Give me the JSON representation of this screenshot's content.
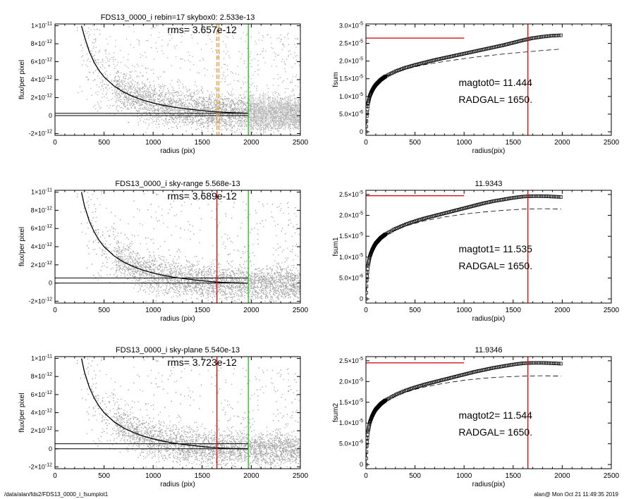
{
  "footer": {
    "path": "/data/alan/fds2/FDS13_0000_i_fsumplot1",
    "stamp": "alan@  Mon Oct 21 11:49:35 2019"
  },
  "colors": {
    "scatter": "#a0a0a0",
    "profile": "#000000",
    "red_line": "#dd1010",
    "green_line": "#22cc22",
    "orange_line": "#e8a040"
  },
  "chart_data": [
    {
      "type": "scatter",
      "title": "FDS13_0000_i rebin=17    skybox0:  2.533e-13",
      "annotation": "rms= 3.657e-12",
      "xlabel": "radius (pix)",
      "ylabel": "flux/per pixel",
      "xlim": [
        0,
        2500
      ],
      "ylim": [
        -2.2e-12,
        1.02e-11
      ],
      "xticks": [
        "0",
        "500",
        "1000",
        "1500",
        "2000",
        "2500"
      ],
      "yticks": [
        {
          "v": 1e-11,
          "m": "1×10",
          "e": "-11"
        },
        {
          "v": 8e-12,
          "m": "8×10",
          "e": "-12"
        },
        {
          "v": 6e-12,
          "m": "6×10",
          "e": "-12"
        },
        {
          "v": 4e-12,
          "m": "4×10",
          "e": "-12"
        },
        {
          "v": 2e-12,
          "m": "2×10",
          "e": "-12"
        },
        {
          "v": 0,
          "m": "0",
          "e": ""
        },
        {
          "v": -2e-12,
          "m": "-2×10",
          "e": "-12"
        }
      ],
      "profile": {
        "x": [
          270,
          300,
          350,
          400,
          450,
          500,
          600,
          700,
          800,
          900,
          1000,
          1100,
          1200,
          1300,
          1400,
          1500,
          1600,
          1700,
          1800,
          1900,
          1970
        ],
        "y": [
          1e-11,
          8.8e-12,
          7.1e-12,
          5.9e-12,
          5e-12,
          4.3e-12,
          3.3e-12,
          2.6e-12,
          2.1e-12,
          1.7e-12,
          1.4e-12,
          1.15e-12,
          9.5e-13,
          8e-13,
          6.8e-13,
          5.5e-13,
          4.5e-13,
          3.8e-13,
          3.2e-13,
          2.8e-13,
          2.6e-13
        ]
      },
      "hlines": [
        0,
        2.533e-13
      ],
      "vlines": [
        {
          "x": 1650,
          "color": "orange",
          "dashed": true
        },
        {
          "x": 1670,
          "color": "orange",
          "dashed": true
        },
        {
          "x": 1970,
          "color": "green",
          "dashed": false
        }
      ],
      "error_bars_from_x": 1970
    },
    {
      "type": "line",
      "title": "",
      "xlabel": "radius(pix)",
      "ylabel": "fsum",
      "xlim": [
        0,
        2500
      ],
      "ylim": [
        -1e-06,
        3.05e-05
      ],
      "xticks": [
        "0",
        "500",
        "1000",
        "1500",
        "2000",
        "2500"
      ],
      "yticks": [
        {
          "v": 3e-05,
          "m": "3.0×10",
          "e": "-5"
        },
        {
          "v": 2.5e-05,
          "m": "2.5×10",
          "e": "-5"
        },
        {
          "v": 2e-05,
          "m": "2.0×10",
          "e": "-5"
        },
        {
          "v": 1.5e-05,
          "m": "1.5×10",
          "e": "-5"
        },
        {
          "v": 1e-05,
          "m": "1.0×10",
          "e": "-5"
        },
        {
          "v": 5e-06,
          "m": "5.0×10",
          "e": "-6"
        },
        {
          "v": 0,
          "m": "0",
          "e": ""
        }
      ],
      "hline": {
        "y": 2.65e-05,
        "x0": 0,
        "x1": 1000
      },
      "vline": 1650,
      "curve": {
        "x": [
          0,
          10,
          20,
          40,
          60,
          80,
          100,
          150,
          200,
          300,
          400,
          500,
          600,
          700,
          800,
          900,
          1000,
          1100,
          1200,
          1300,
          1400,
          1500,
          1600,
          1700,
          1800,
          1900,
          1990
        ],
        "y": [
          0,
          5e-06,
          7.8e-06,
          1.02e-05,
          1.15e-05,
          1.25e-05,
          1.33e-05,
          1.47e-05,
          1.57e-05,
          1.71e-05,
          1.81e-05,
          1.89e-05,
          1.96e-05,
          2.03e-05,
          2.09e-05,
          2.15e-05,
          2.21e-05,
          2.27e-05,
          2.33e-05,
          2.39e-05,
          2.45e-05,
          2.52e-05,
          2.59e-05,
          2.65e-05,
          2.69e-05,
          2.72e-05,
          2.73e-05
        ]
      },
      "dashed_curve": {
        "x": [
          0,
          20,
          60,
          100,
          200,
          300,
          400,
          500,
          600,
          800,
          1000,
          1200,
          1400,
          1600,
          1800,
          1990
        ],
        "y": [
          0,
          7.8e-06,
          1.15e-05,
          1.33e-05,
          1.56e-05,
          1.68e-05,
          1.77e-05,
          1.84e-05,
          1.9e-05,
          1.99e-05,
          2.07e-05,
          2.14e-05,
          2.2e-05,
          2.25e-05,
          2.3e-05,
          2.34e-05
        ]
      },
      "labels": [
        "magtot0=  11.444",
        "RADGAL=   1650."
      ]
    },
    {
      "type": "scatter",
      "title": "FDS13_0000_i sky-range  5.568e-13",
      "annotation": "rms= 3.689e-12",
      "xlabel": "radius (pix)",
      "ylabel": "flux/per pixel",
      "xlim": [
        0,
        2500
      ],
      "ylim": [
        -2.2e-12,
        1.02e-11
      ],
      "xticks": [
        "0",
        "500",
        "1000",
        "1500",
        "2000",
        "2500"
      ],
      "yticks": [
        {
          "v": 1e-11,
          "m": "1×10",
          "e": "-11"
        },
        {
          "v": 8e-12,
          "m": "8×10",
          "e": "-12"
        },
        {
          "v": 6e-12,
          "m": "6×10",
          "e": "-12"
        },
        {
          "v": 4e-12,
          "m": "4×10",
          "e": "-12"
        },
        {
          "v": 2e-12,
          "m": "2×10",
          "e": "-12"
        },
        {
          "v": 0,
          "m": "0",
          "e": ""
        },
        {
          "v": -2e-12,
          "m": "-2×10",
          "e": "-12"
        }
      ],
      "profile": {
        "x": [
          270,
          300,
          350,
          400,
          450,
          500,
          600,
          700,
          800,
          900,
          1000,
          1100,
          1200,
          1300,
          1400,
          1500,
          1600,
          1700,
          1800,
          1900,
          1970
        ],
        "y": [
          1e-11,
          8.5e-12,
          6.8e-12,
          5.6e-12,
          4.7e-12,
          4e-12,
          3e-12,
          2.3e-12,
          1.8e-12,
          1.4e-12,
          1.1e-12,
          8.5e-13,
          6.5e-13,
          5e-13,
          3.8e-13,
          2.5e-13,
          1.5e-13,
          8e-14,
          3e-14,
          0.0,
          0.0
        ]
      },
      "hlines": [
        0,
        5.568e-13
      ],
      "vlines": [
        {
          "x": 1650,
          "color": "red",
          "dashed": false
        },
        {
          "x": 1970,
          "color": "green",
          "dashed": false
        }
      ]
    },
    {
      "type": "line",
      "title": "11.9343",
      "xlabel": "radius(pix)",
      "ylabel": "fsum1",
      "xlim": [
        0,
        2500
      ],
      "ylim": [
        -1e-06,
        2.6e-05
      ],
      "xticks": [
        "0",
        "500",
        "1000",
        "1500",
        "2000",
        "2500"
      ],
      "yticks": [
        {
          "v": 2.5e-05,
          "m": "2.5×10",
          "e": "-5"
        },
        {
          "v": 2e-05,
          "m": "2.0×10",
          "e": "-5"
        },
        {
          "v": 1.5e-05,
          "m": "1.5×10",
          "e": "-5"
        },
        {
          "v": 1e-05,
          "m": "1.0×10",
          "e": "-5"
        },
        {
          "v": 5e-06,
          "m": "5.0×10",
          "e": "-6"
        },
        {
          "v": 0,
          "m": "0",
          "e": ""
        }
      ],
      "hline": {
        "y": 2.47e-05,
        "x0": 0,
        "x1": 1000
      },
      "vline": 1650,
      "curve": {
        "x": [
          0,
          10,
          20,
          40,
          60,
          80,
          100,
          150,
          200,
          300,
          400,
          500,
          600,
          700,
          800,
          900,
          1000,
          1100,
          1200,
          1300,
          1400,
          1500,
          1600,
          1700,
          1800,
          1900,
          1990
        ],
        "y": [
          0,
          5e-06,
          7.8e-06,
          1.02e-05,
          1.15e-05,
          1.25e-05,
          1.33e-05,
          1.46e-05,
          1.55e-05,
          1.68e-05,
          1.78e-05,
          1.86e-05,
          1.93e-05,
          1.99e-05,
          2.05e-05,
          2.11e-05,
          2.17e-05,
          2.23e-05,
          2.29e-05,
          2.34e-05,
          2.38e-05,
          2.42e-05,
          2.45e-05,
          2.46e-05,
          2.46e-05,
          2.45e-05,
          2.44e-05
        ]
      },
      "dashed_curve": {
        "x": [
          0,
          20,
          60,
          100,
          200,
          300,
          400,
          500,
          600,
          800,
          1000,
          1200,
          1400,
          1600,
          1800,
          1990
        ],
        "y": [
          0,
          7.8e-06,
          1.15e-05,
          1.32e-05,
          1.53e-05,
          1.65e-05,
          1.74e-05,
          1.81e-05,
          1.87e-05,
          1.96e-05,
          2.03e-05,
          2.08e-05,
          2.12e-05,
          2.15e-05,
          2.16e-05,
          2.15e-05
        ]
      },
      "labels": [
        "magtot1=  11.535",
        "RADGAL=   1650."
      ]
    },
    {
      "type": "scatter",
      "title": "FDS13_0000_i sky-plane  5.540e-13",
      "annotation": "rms= 3.723e-12",
      "xlabel": "radius (pix)",
      "ylabel": "flux/per pixel",
      "xlim": [
        0,
        2500
      ],
      "ylim": [
        -2.2e-12,
        1.02e-11
      ],
      "xticks": [
        "0",
        "500",
        "1000",
        "1500",
        "2000",
        "2500"
      ],
      "yticks": [
        {
          "v": 1e-11,
          "m": "1×10",
          "e": "-11"
        },
        {
          "v": 8e-12,
          "m": "8×10",
          "e": "-12"
        },
        {
          "v": 6e-12,
          "m": "6×10",
          "e": "-12"
        },
        {
          "v": 4e-12,
          "m": "4×10",
          "e": "-12"
        },
        {
          "v": 2e-12,
          "m": "2×10",
          "e": "-12"
        },
        {
          "v": 0,
          "m": "0",
          "e": ""
        },
        {
          "v": -2e-12,
          "m": "-2×10",
          "e": "-12"
        }
      ],
      "profile": {
        "x": [
          270,
          300,
          350,
          400,
          450,
          500,
          600,
          700,
          800,
          900,
          1000,
          1100,
          1200,
          1300,
          1400,
          1500,
          1600,
          1700,
          1800,
          1900,
          1970
        ],
        "y": [
          1e-11,
          8.5e-12,
          6.8e-12,
          5.6e-12,
          4.7e-12,
          4e-12,
          3e-12,
          2.3e-12,
          1.8e-12,
          1.4e-12,
          1.1e-12,
          8.5e-13,
          6.5e-13,
          5e-13,
          3.8e-13,
          2.5e-13,
          1.5e-13,
          8e-14,
          3e-14,
          0.0,
          0.0
        ]
      },
      "hlines": [
        0,
        5.54e-13
      ],
      "vlines": [
        {
          "x": 1650,
          "color": "red",
          "dashed": false
        },
        {
          "x": 1970,
          "color": "green",
          "dashed": false
        }
      ]
    },
    {
      "type": "line",
      "title": "11.9346",
      "xlabel": "radius(pix)",
      "ylabel": "fsum2",
      "xlim": [
        0,
        2500
      ],
      "ylim": [
        -1e-06,
        2.6e-05
      ],
      "xticks": [
        "0",
        "500",
        "1000",
        "1500",
        "2000",
        "2500"
      ],
      "yticks": [
        {
          "v": 2.5e-05,
          "m": "2.5×10",
          "e": "-5"
        },
        {
          "v": 2e-05,
          "m": "2.0×10",
          "e": "-5"
        },
        {
          "v": 1.5e-05,
          "m": "1.5×10",
          "e": "-5"
        },
        {
          "v": 1e-05,
          "m": "1.0×10",
          "e": "-5"
        },
        {
          "v": 5e-06,
          "m": "5.0×10",
          "e": "-6"
        },
        {
          "v": 0,
          "m": "0",
          "e": ""
        }
      ],
      "hline": {
        "y": 2.45e-05,
        "x0": 0,
        "x1": 1000
      },
      "vline": 1650,
      "curve": {
        "x": [
          0,
          10,
          20,
          40,
          60,
          80,
          100,
          150,
          200,
          300,
          400,
          500,
          600,
          700,
          800,
          900,
          1000,
          1100,
          1200,
          1300,
          1400,
          1500,
          1600,
          1700,
          1800,
          1900,
          1990
        ],
        "y": [
          0,
          5e-06,
          7.8e-06,
          1.02e-05,
          1.15e-05,
          1.25e-05,
          1.33e-05,
          1.46e-05,
          1.55e-05,
          1.68e-05,
          1.78e-05,
          1.86e-05,
          1.93e-05,
          1.99e-05,
          2.05e-05,
          2.11e-05,
          2.17e-05,
          2.23e-05,
          2.28e-05,
          2.33e-05,
          2.37e-05,
          2.41e-05,
          2.44e-05,
          2.45e-05,
          2.45e-05,
          2.44e-05,
          2.43e-05
        ]
      },
      "dashed_curve": {
        "x": [
          0,
          20,
          60,
          100,
          200,
          300,
          400,
          500,
          600,
          800,
          1000,
          1200,
          1400,
          1600,
          1800,
          1990
        ],
        "y": [
          0,
          7.8e-06,
          1.15e-05,
          1.32e-05,
          1.53e-05,
          1.65e-05,
          1.74e-05,
          1.81e-05,
          1.87e-05,
          1.96e-05,
          2.03e-05,
          2.08e-05,
          2.11e-05,
          2.13e-05,
          2.14e-05,
          2.13e-05
        ]
      },
      "labels": [
        "magtot2=  11.544",
        "RADGAL=   1650."
      ]
    }
  ]
}
